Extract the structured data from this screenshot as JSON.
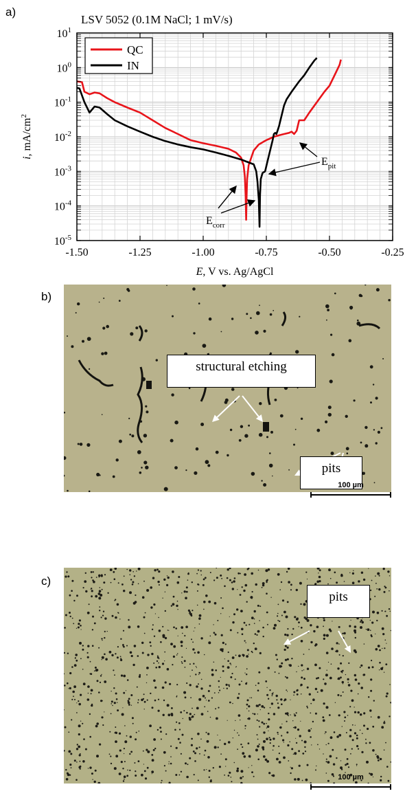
{
  "panel_labels": {
    "a": "a)",
    "b": "b)",
    "c": "c)"
  },
  "chart_data": {
    "type": "line",
    "title": "LSV 5052 (0.1M NaCl; 1 mV/s)",
    "xlabel_italic": "E",
    "xlabel_rest": ", V vs. Ag/AgCl",
    "ylabel_italic": "i",
    "ylabel_rest": ", mA/cm",
    "ylabel_sup": "2",
    "xlim": [
      -1.5,
      -0.25
    ],
    "ylim_log10": [
      -5,
      1
    ],
    "y_scale": "log",
    "grid": true,
    "legend_position": "top-left",
    "x_ticks": [
      -1.5,
      -1.25,
      -1.0,
      -0.75,
      -0.5,
      -0.25
    ],
    "x_tick_labels": [
      "-1.50",
      "-1.25",
      "-1.00",
      "-0.75",
      "-0.50",
      "-0.25"
    ],
    "y_tick_labels": [
      {
        "base": "10",
        "exp": "-5",
        "pow": -5
      },
      {
        "base": "10",
        "exp": "-4",
        "pow": -4
      },
      {
        "base": "10",
        "exp": "-3",
        "pow": -3
      },
      {
        "base": "10",
        "exp": "-2",
        "pow": -2
      },
      {
        "base": "10",
        "exp": "-1",
        "pow": -1
      },
      {
        "base": "10",
        "exp": "0",
        "pow": 0
      },
      {
        "base": "10",
        "exp": "1",
        "pow": 1
      }
    ],
    "series": [
      {
        "name": "QC",
        "color": "#e8141a",
        "points": [
          [
            -1.5,
            0.4
          ],
          [
            -1.48,
            0.38
          ],
          [
            -1.47,
            0.2
          ],
          [
            -1.45,
            0.17
          ],
          [
            -1.43,
            0.19
          ],
          [
            -1.41,
            0.18
          ],
          [
            -1.38,
            0.13
          ],
          [
            -1.35,
            0.1
          ],
          [
            -1.3,
            0.07
          ],
          [
            -1.25,
            0.05
          ],
          [
            -1.2,
            0.03
          ],
          [
            -1.15,
            0.018
          ],
          [
            -1.1,
            0.012
          ],
          [
            -1.05,
            0.008
          ],
          [
            -1.0,
            0.0065
          ],
          [
            -0.95,
            0.0055
          ],
          [
            -0.9,
            0.0045
          ],
          [
            -0.87,
            0.0035
          ],
          [
            -0.85,
            0.0025
          ],
          [
            -0.84,
            0.0015
          ],
          [
            -0.835,
            0.0007
          ],
          [
            -0.832,
            0.0002
          ],
          [
            -0.83,
            4e-05
          ],
          [
            -0.828,
            0.0002
          ],
          [
            -0.826,
            0.0006
          ],
          [
            -0.82,
            0.0015
          ],
          [
            -0.8,
            0.004
          ],
          [
            -0.78,
            0.006
          ],
          [
            -0.75,
            0.008
          ],
          [
            -0.72,
            0.01
          ],
          [
            -0.7,
            0.011
          ],
          [
            -0.68,
            0.012
          ],
          [
            -0.66,
            0.013
          ],
          [
            -0.65,
            0.014
          ],
          [
            -0.64,
            0.012
          ],
          [
            -0.63,
            0.015
          ],
          [
            -0.62,
            0.03
          ],
          [
            -0.6,
            0.03
          ],
          [
            -0.58,
            0.05
          ],
          [
            -0.55,
            0.1
          ],
          [
            -0.52,
            0.2
          ],
          [
            -0.5,
            0.3
          ],
          [
            -0.48,
            0.6
          ],
          [
            -0.46,
            1.2
          ],
          [
            -0.455,
            1.7
          ]
        ]
      },
      {
        "name": "IN",
        "color": "#000000",
        "points": [
          [
            -1.5,
            0.26
          ],
          [
            -1.49,
            0.25
          ],
          [
            -1.47,
            0.1
          ],
          [
            -1.45,
            0.05
          ],
          [
            -1.43,
            0.075
          ],
          [
            -1.41,
            0.07
          ],
          [
            -1.38,
            0.045
          ],
          [
            -1.35,
            0.03
          ],
          [
            -1.3,
            0.02
          ],
          [
            -1.25,
            0.014
          ],
          [
            -1.2,
            0.01
          ],
          [
            -1.15,
            0.0075
          ],
          [
            -1.1,
            0.006
          ],
          [
            -1.05,
            0.005
          ],
          [
            -1.0,
            0.0043
          ],
          [
            -0.95,
            0.0035
          ],
          [
            -0.9,
            0.0028
          ],
          [
            -0.85,
            0.0022
          ],
          [
            -0.8,
            0.0016
          ],
          [
            -0.79,
            0.001
          ],
          [
            -0.785,
            0.0005
          ],
          [
            -0.78,
            0.00015
          ],
          [
            -0.777,
            2.5e-05
          ],
          [
            -0.775,
            0.0002
          ],
          [
            -0.772,
            0.0006
          ],
          [
            -0.765,
            0.0009
          ],
          [
            -0.755,
            0.001
          ],
          [
            -0.745,
            0.002
          ],
          [
            -0.735,
            0.004
          ],
          [
            -0.725,
            0.008
          ],
          [
            -0.72,
            0.012
          ],
          [
            -0.715,
            0.013
          ],
          [
            -0.71,
            0.012
          ],
          [
            -0.7,
            0.02
          ],
          [
            -0.69,
            0.04
          ],
          [
            -0.68,
            0.08
          ],
          [
            -0.67,
            0.12
          ],
          [
            -0.65,
            0.2
          ],
          [
            -0.62,
            0.4
          ],
          [
            -0.6,
            0.6
          ],
          [
            -0.58,
            1.0
          ],
          [
            -0.56,
            1.6
          ],
          [
            -0.55,
            1.9
          ]
        ]
      }
    ],
    "annotations": [
      {
        "base": "E",
        "sub": "pit"
      },
      {
        "base": "E",
        "sub": "corr"
      }
    ]
  },
  "micrograph_b": {
    "label_structural": "structural etching",
    "label_pits": "pits",
    "scale_text": "100 µm"
  },
  "micrograph_c": {
    "label_pits": "pits",
    "scale_text": "100 µm"
  }
}
